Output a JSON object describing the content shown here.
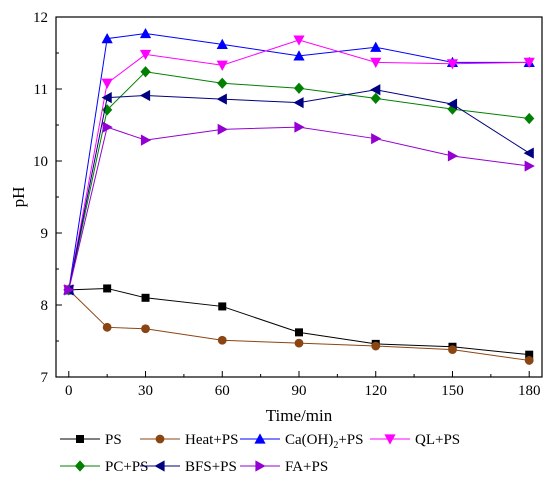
{
  "chart_data": {
    "type": "line",
    "xlabel": "Time/min",
    "ylabel": "pH",
    "xlim": [
      -5,
      185
    ],
    "ylim": [
      7,
      12
    ],
    "xticks": [
      0,
      30,
      60,
      90,
      120,
      150,
      180
    ],
    "yticks": [
      7,
      8,
      9,
      10,
      11,
      12
    ],
    "x": [
      0,
      15,
      30,
      60,
      90,
      120,
      150,
      180
    ],
    "legend_position": "bottom",
    "series": [
      {
        "name": "PS",
        "color": "#000000",
        "marker": "square",
        "values": [
          8.21,
          8.23,
          8.1,
          7.98,
          7.62,
          7.46,
          7.42,
          7.31
        ]
      },
      {
        "name": "Heat+PS",
        "color": "#8b4513",
        "marker": "circle",
        "values": [
          8.21,
          7.69,
          7.67,
          7.51,
          7.47,
          7.43,
          7.38,
          7.23
        ]
      },
      {
        "name": "Ca(OH)2+PS",
        "color": "#0000ff",
        "marker": "triangle-up",
        "values": [
          8.21,
          11.7,
          11.77,
          11.62,
          11.46,
          11.58,
          11.37,
          11.37
        ]
      },
      {
        "name": "QL+PS",
        "color": "#ff00ff",
        "marker": "triangle-down",
        "values": [
          8.21,
          11.08,
          11.48,
          11.33,
          11.68,
          11.37,
          11.35,
          11.37
        ]
      },
      {
        "name": "PC+PS",
        "color": "#008000",
        "marker": "diamond",
        "values": [
          8.21,
          10.71,
          11.24,
          11.08,
          11.01,
          10.87,
          10.72,
          10.59
        ]
      },
      {
        "name": "BFS+PS",
        "color": "#000080",
        "marker": "triangle-left",
        "values": [
          8.21,
          10.88,
          10.91,
          10.86,
          10.81,
          10.99,
          10.79,
          10.11
        ]
      },
      {
        "name": "FA+PS",
        "color": "#9400d3",
        "marker": "triangle-right",
        "values": [
          8.21,
          10.47,
          10.29,
          10.44,
          10.47,
          10.31,
          10.07,
          9.93
        ]
      }
    ]
  }
}
